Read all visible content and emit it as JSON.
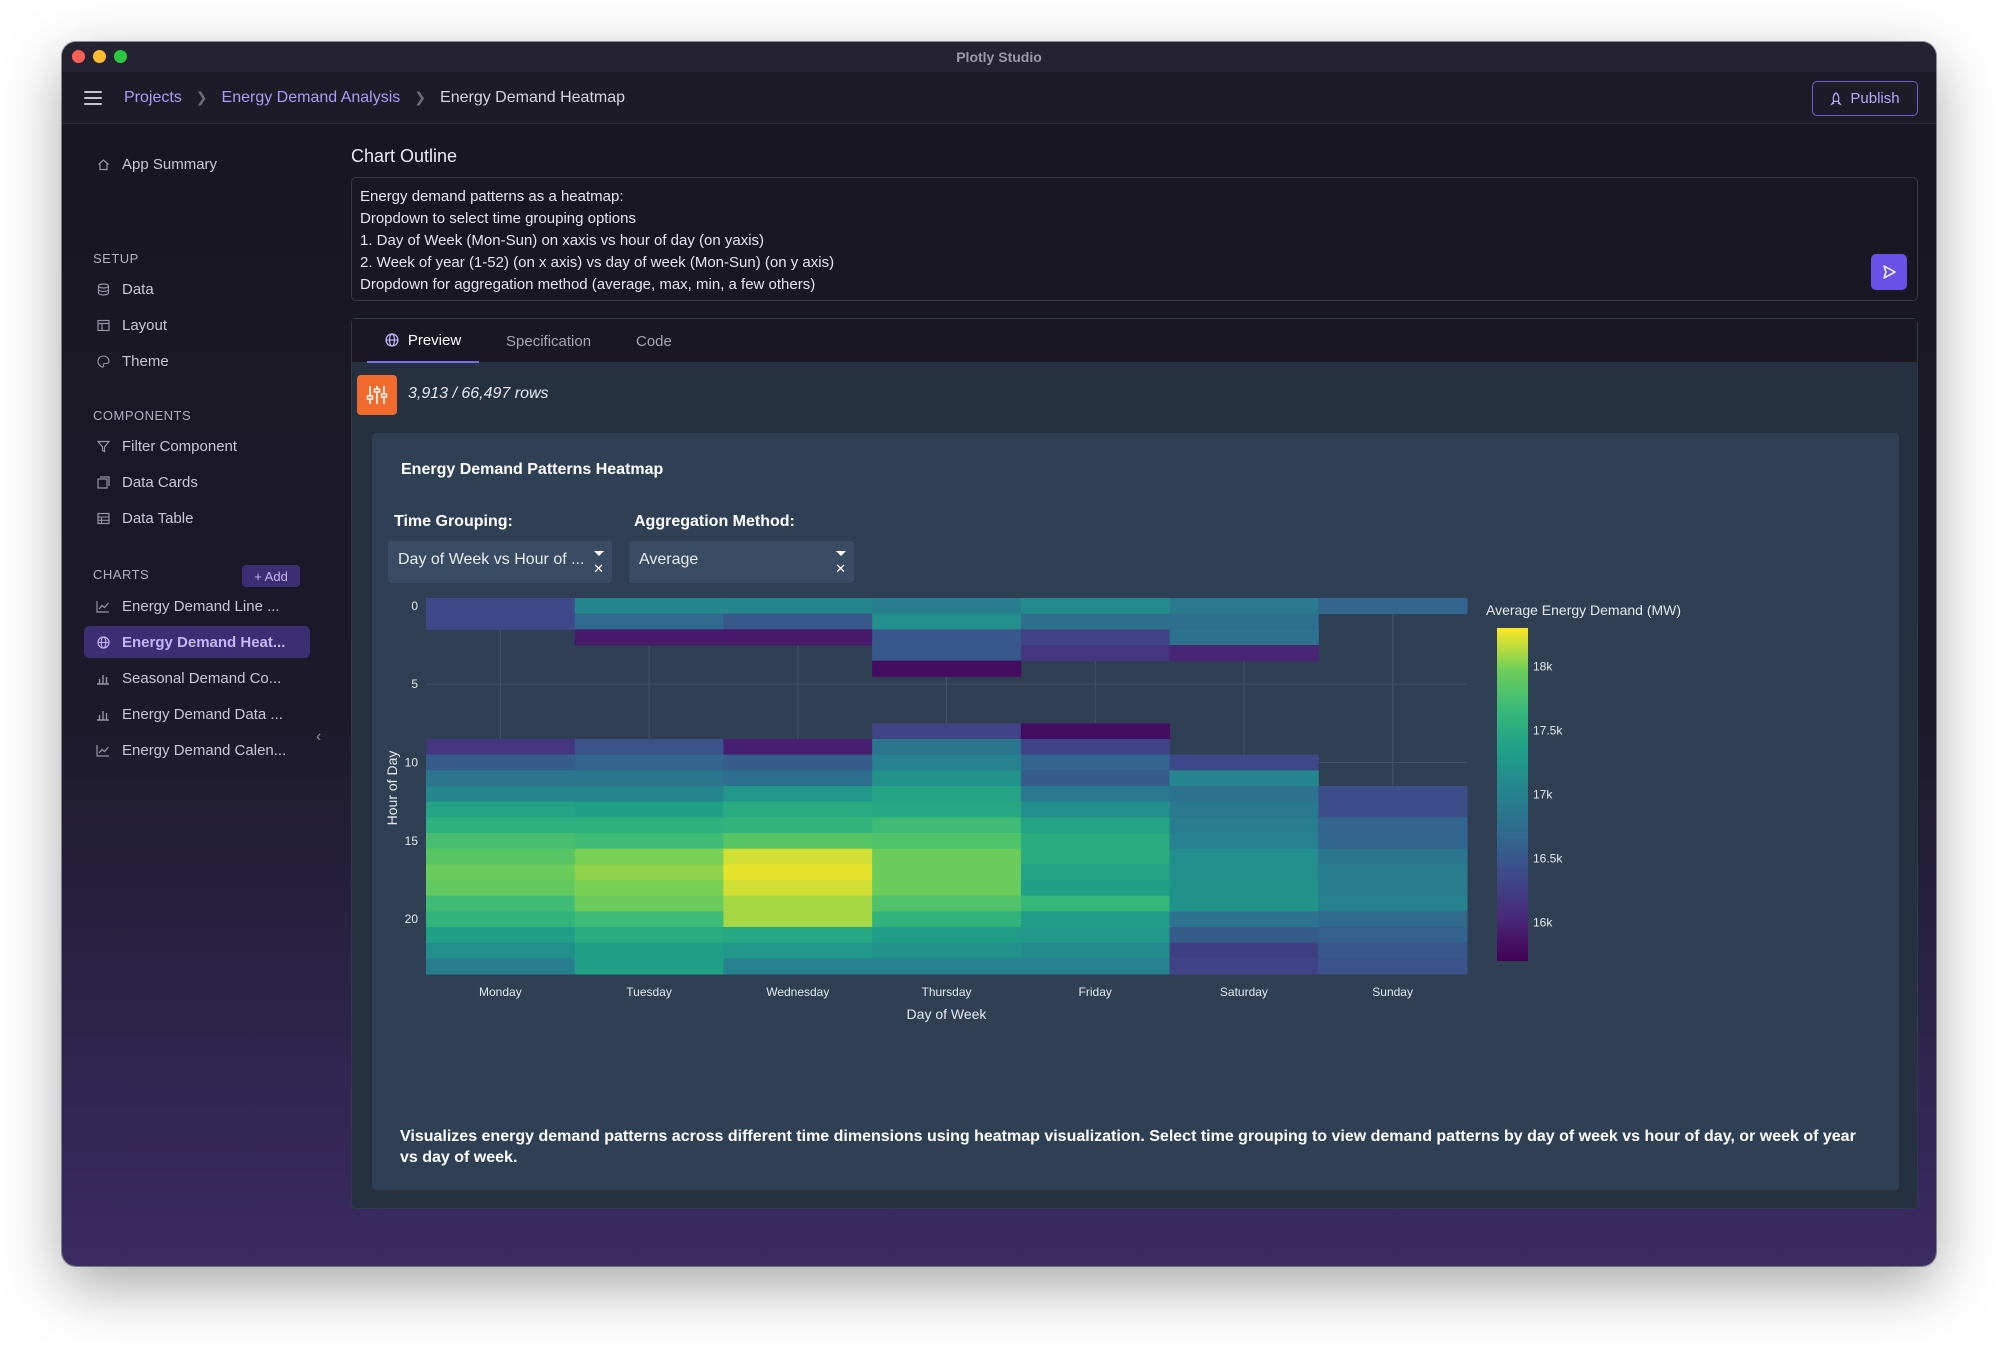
{
  "window": {
    "title": "Plotly Studio"
  },
  "breadcrumb": {
    "projects": "Projects",
    "project": "Energy Demand Analysis",
    "current": "Energy Demand Heatmap"
  },
  "topbar": {
    "publish_label": "Publish"
  },
  "sidebar": {
    "app_summary": "App Summary",
    "setup_label": "SETUP",
    "setup_items": [
      "Data",
      "Layout",
      "Theme"
    ],
    "components_label": "COMPONENTS",
    "component_items": [
      "Filter Component",
      "Data Cards",
      "Data Table"
    ],
    "charts_label": "CHARTS",
    "add_label": "+ Add",
    "chart_items": [
      "Energy Demand Line ...",
      "Energy Demand Heat...",
      "Seasonal Demand Co...",
      "Energy Demand Data ...",
      "Energy Demand Calen..."
    ],
    "active_chart_index": 1
  },
  "outline": {
    "title": "Chart Outline",
    "lines": [
      "Energy demand patterns as a heatmap:",
      "Dropdown to select time grouping options",
      "1. Day of Week (Mon-Sun) on xaxis vs hour of day (on yaxis)",
      "2. Week of year (1-52) (on x axis) vs day of week (Mon-Sun) (on y axis)",
      "Dropdown for aggregation method (average, max, min, a few others)"
    ]
  },
  "tabs": {
    "preview": "Preview",
    "specification": "Specification",
    "code": "Code",
    "active": "preview"
  },
  "rows": {
    "text": "3,913 / 66,497 rows"
  },
  "chart_card": {
    "title": "Energy Demand Patterns Heatmap",
    "time_grouping_label": "Time Grouping:",
    "time_grouping_value": "Day of Week vs Hour of ...",
    "aggregation_label": "Aggregation Method:",
    "aggregation_value": "Average",
    "description": "Visualizes energy demand patterns across different time dimensions using heatmap visualization. Select time grouping to view demand patterns by day of week vs hour of day, or week of year vs day of week."
  },
  "colors": {
    "accent": "#7c6ae8",
    "sidebar_active_bg": "#3b2e72",
    "filter_button": "#f26b2c",
    "panel_bg": "#2f3f54"
  },
  "chart_data": {
    "type": "heatmap",
    "xlabel": "Day of Week",
    "ylabel": "Hour of Day",
    "x": [
      "Monday",
      "Tuesday",
      "Wednesday",
      "Thursday",
      "Friday",
      "Saturday",
      "Sunday"
    ],
    "y": [
      0,
      1,
      2,
      3,
      4,
      5,
      6,
      7,
      8,
      9,
      10,
      11,
      12,
      13,
      14,
      15,
      16,
      17,
      18,
      19,
      20,
      21,
      22,
      23
    ],
    "y_ticks": [
      0,
      5,
      10,
      15,
      20
    ],
    "colorbar_title": "Average Energy Demand (MW)",
    "colorbar_ticks": [
      {
        "value": 16000,
        "label": "16k"
      },
      {
        "value": 16500,
        "label": "16.5k"
      },
      {
        "value": 17000,
        "label": "17k"
      },
      {
        "value": 17500,
        "label": "17.5k"
      },
      {
        "value": 18000,
        "label": "18k"
      }
    ],
    "zmin": 15700,
    "zmax": 18300,
    "z": [
      [
        16350,
        17050,
        17050,
        16950,
        17100,
        16900,
        16650
      ],
      [
        16350,
        16700,
        16500,
        17150,
        16750,
        16750,
        null
      ],
      [
        null,
        15900,
        15900,
        16500,
        16300,
        16800,
        null
      ],
      [
        null,
        null,
        null,
        16500,
        16150,
        16000,
        null
      ],
      [
        null,
        null,
        null,
        15800,
        null,
        null,
        null
      ],
      [
        null,
        null,
        null,
        null,
        null,
        null,
        null
      ],
      [
        null,
        null,
        null,
        null,
        null,
        null,
        null
      ],
      [
        null,
        null,
        null,
        null,
        null,
        null,
        null
      ],
      [
        null,
        null,
        null,
        16300,
        15800,
        null,
        null
      ],
      [
        16150,
        16450,
        15950,
        16850,
        16300,
        null,
        null
      ],
      [
        16550,
        16650,
        16550,
        17000,
        16650,
        16350,
        null
      ],
      [
        16850,
        16850,
        16750,
        17200,
        16550,
        17050,
        null
      ],
      [
        17050,
        17050,
        17250,
        17400,
        16900,
        16800,
        16400
      ],
      [
        17400,
        17350,
        17500,
        17450,
        17150,
        16900,
        16400
      ],
      [
        17550,
        17550,
        17600,
        17700,
        17400,
        16950,
        16650
      ],
      [
        17750,
        17700,
        17850,
        17800,
        17500,
        17000,
        16650
      ],
      [
        17850,
        18000,
        18200,
        17950,
        17500,
        17150,
        16850
      ],
      [
        17950,
        18050,
        18250,
        17950,
        17400,
        17150,
        16950
      ],
      [
        17900,
        18000,
        18200,
        17950,
        17350,
        17200,
        16950
      ],
      [
        17700,
        17950,
        18100,
        17800,
        17650,
        17200,
        17000
      ],
      [
        17600,
        17700,
        18100,
        17600,
        17300,
        16800,
        16700
      ],
      [
        17350,
        17500,
        17450,
        17300,
        17250,
        16550,
        16600
      ],
      [
        17150,
        17350,
        17250,
        17200,
        17100,
        16250,
        16500
      ],
      [
        16950,
        17350,
        17000,
        17000,
        17000,
        16300,
        16450
      ]
    ]
  }
}
